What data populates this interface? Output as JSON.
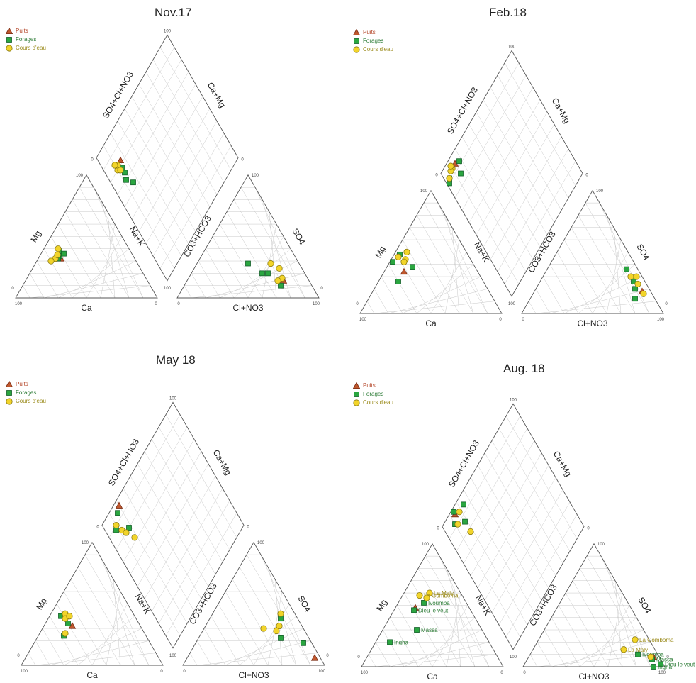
{
  "legend": {
    "puits": {
      "label": "Puits",
      "color": "#c0582e",
      "text_color": "#b5472a"
    },
    "forages": {
      "label": "Forages",
      "color": "#2aa640",
      "text_color": "#2a7a34"
    },
    "cours": {
      "label": "Cours d'eau",
      "color": "#f2d42a",
      "text_color": "#9a8a1a"
    }
  },
  "chart_data": [
    {
      "type": "piper",
      "title": "Nov.17",
      "axis_labels": {
        "ca": "Ca",
        "mg": "Mg",
        "nak": "Na+K",
        "co3": "CO3+HCO3",
        "so4": "SO4",
        "cl": "Cl+NO3",
        "so4cl": "SO4+Cl+NO3",
        "camg": "Ca+Mg"
      },
      "series": [
        {
          "name": "Puits",
          "points": [
            {
              "cation": [
                52,
                32,
                16
              ],
              "anion": [
                18,
                14,
                68
              ]
            }
          ]
        },
        {
          "name": "Forages",
          "points": [
            {
              "cation": [
                50,
                38,
                12
              ],
              "anion": [
                30,
                20,
                50
              ]
            },
            {
              "cation": [
                52,
                34,
                14
              ],
              "anion": [
                26,
                20,
                54
              ]
            },
            {
              "cation": [
                48,
                36,
                16
              ],
              "anion": [
                36,
                28,
                36
              ]
            },
            {
              "cation": [
                54,
                32,
                14
              ],
              "anion": [
                22,
                10,
                68
              ]
            }
          ]
        },
        {
          "name": "Cours d'eau",
          "points": [
            {
              "cation": [
                50,
                40,
                10
              ],
              "anion": [
                20,
                28,
                52
              ]
            },
            {
              "cation": [
                56,
                32,
                12
              ],
              "anion": [
                18,
                16,
                66
              ]
            },
            {
              "cation": [
                60,
                30,
                10
              ],
              "anion": [
                16,
                24,
                60
              ]
            },
            {
              "cation": [
                53,
                35,
                12
              ],
              "anion": [
                22,
                14,
                64
              ]
            }
          ]
        }
      ]
    },
    {
      "type": "piper",
      "title": "Feb.18",
      "axis_labels": {
        "ca": "Ca",
        "mg": "Mg",
        "nak": "Na+K",
        "co3": "CO3+HCO3",
        "so4": "SO4",
        "cl": "Cl+NO3",
        "so4cl": "SO4+Cl+NO3",
        "camg": "Ca+Mg"
      },
      "series": [
        {
          "name": "Puits",
          "points": [
            {
              "cation": [
                52,
                34,
                14
              ],
              "anion": [
                6,
                18,
                76
              ]
            }
          ]
        },
        {
          "name": "Forages",
          "points": [
            {
              "cation": [
                56,
                42,
                2
              ],
              "anion": [
                10,
                20,
                70
              ]
            },
            {
              "cation": [
                48,
                48,
                4
              ],
              "anion": [
                8,
                26,
                66
              ]
            },
            {
              "cation": [
                44,
                38,
                18
              ],
              "anion": [
                8,
                36,
                56
              ]
            },
            {
              "cation": [
                60,
                26,
                14
              ],
              "anion": [
                14,
                12,
                74
              ]
            }
          ]
        },
        {
          "name": "Cours d'eau",
          "points": [
            {
              "cation": [
                46,
                44,
                10
              ],
              "anion": [
                6,
                24,
                70
              ]
            },
            {
              "cation": [
                50,
                46,
                4
              ],
              "anion": [
                8,
                30,
                62
              ]
            },
            {
              "cation": [
                42,
                50,
                8
              ],
              "anion": [
                6,
                16,
                78
              ]
            },
            {
              "cation": [
                48,
                42,
                10
              ],
              "anion": [
                4,
                30,
                66
              ]
            }
          ]
        }
      ]
    },
    {
      "type": "piper",
      "title": "May 18",
      "axis_labels": {
        "ca": "Ca",
        "mg": "Mg",
        "nak": "Na+K",
        "co3": "CO3+HCO3",
        "so4": "SO4",
        "cl": "Cl+NO3",
        "so4cl": "SO4+Cl+NO3",
        "camg": "Ca+Mg"
      },
      "series": [
        {
          "name": "Puits",
          "points": [
            {
              "cation": [
                48,
                32,
                20
              ],
              "anion": [
                4,
                6,
                90
              ]
            }
          ]
        },
        {
          "name": "Forages",
          "points": [
            {
              "cation": [
                52,
                40,
                8
              ],
              "anion": [
                12,
                38,
                50
              ]
            },
            {
              "cation": [
                50,
                34,
                16
              ],
              "anion": [
                6,
                18,
                76
              ]
            },
            {
              "cation": [
                58,
                24,
                18
              ],
              "anion": [
                20,
                22,
                58
              ]
            }
          ]
        },
        {
          "name": "Cours d'eau",
          "points": [
            {
              "cation": [
                48,
                42,
                10
              ],
              "anion": [
                10,
                42,
                48
              ]
            },
            {
              "cation": [
                50,
                38,
                12
              ],
              "anion": [
                16,
                32,
                52
              ]
            },
            {
              "cation": [
                46,
                40,
                14
              ],
              "anion": [
                20,
                28,
                52
              ]
            },
            {
              "cation": [
                56,
                26,
                18
              ],
              "anion": [
                28,
                30,
                42
              ]
            }
          ]
        }
      ]
    },
    {
      "type": "piper",
      "title": "Aug. 18",
      "axis_labels": {
        "ca": "Ca",
        "mg": "Mg",
        "nak": "Na+K",
        "co3": "CO3+HCO3",
        "so4": "SO4",
        "cl": "Cl+NO3",
        "so4cl": "SO4+Cl+NO3",
        "camg": "Ca+Mg"
      },
      "series": [
        {
          "name": "Puits",
          "points": [
            {
              "cation": [
                38,
                48,
                14
              ],
              "anion": [
                4,
                8,
                88
              ],
              "label": ""
            }
          ]
        },
        {
          "name": "Forages",
          "points": [
            {
              "cation": [
                30,
                52,
                18
              ],
              "anion": [
                14,
                10,
                76
              ],
              "label": "Ivoumba"
            },
            {
              "cation": [
                46,
                30,
                24
              ],
              "anion": [
                6,
                6,
                88
              ],
              "label": "Massa"
            },
            {
              "cation": [
                40,
                46,
                14
              ],
              "anion": [
                2,
                2,
                96
              ],
              "label": "Dieu le veut"
            },
            {
              "cation": [
                70,
                20,
                10
              ],
              "anion": [
                8,
                0,
                92
              ],
              "label": "Ingha"
            }
          ]
        },
        {
          "name": "Cours d'eau",
          "points": [
            {
              "cation": [
                22,
                60,
                18
              ],
              "anion": [
                22,
                14,
                64
              ],
              "label": "La Maly"
            },
            {
              "cation": [
                30,
                58,
                12
              ],
              "anion": [
                10,
                22,
                68
              ],
              "label": "La Gomboma"
            },
            {
              "cation": [
                26,
                56,
                18
              ],
              "anion": [
                6,
                8,
                86
              ],
              "label": ""
            }
          ]
        }
      ]
    }
  ]
}
